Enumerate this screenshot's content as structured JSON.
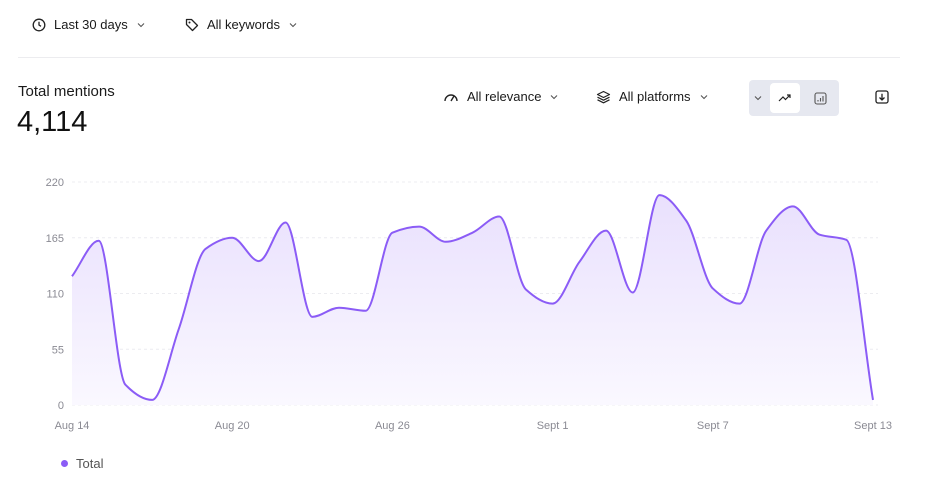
{
  "filters": {
    "date_range": "Last 30 days",
    "keywords": "All keywords",
    "relevance": "All relevance",
    "platforms": "All platforms"
  },
  "summary": {
    "label": "Total mentions",
    "value": "4,114"
  },
  "view_toggle": {
    "selected": "line",
    "options": [
      "line",
      "bar"
    ]
  },
  "icons": [
    "clock-icon",
    "tag-icon",
    "gauge-icon",
    "layers-icon",
    "chevron-down-icon",
    "trend-line-icon",
    "bar-chart-icon",
    "download-icon"
  ],
  "colors": {
    "accent": "#8b5cf6",
    "fill": "#ede6fd"
  },
  "chart_data": {
    "type": "area",
    "x_tick_labels": [
      "Aug 14",
      "Aug 20",
      "Aug 26",
      "Sept 1",
      "Sept 7",
      "Sept 13"
    ],
    "y_ticks": [
      0,
      55,
      110,
      165,
      220
    ],
    "ylim": [
      0,
      220
    ],
    "grid": true,
    "legend_position": "bottom-left",
    "series": [
      {
        "name": "Total",
        "color": "#8b5cf6",
        "x_start": "Aug 14",
        "x_end": "Sept 13",
        "values": [
          127,
          162,
          20,
          5,
          75,
          154,
          165,
          142,
          180,
          87,
          96,
          93,
          170,
          176,
          161,
          170,
          186,
          114,
          100,
          141,
          172,
          111,
          207,
          182,
          115,
          100,
          172,
          196,
          168,
          163,
          5
        ]
      }
    ]
  }
}
